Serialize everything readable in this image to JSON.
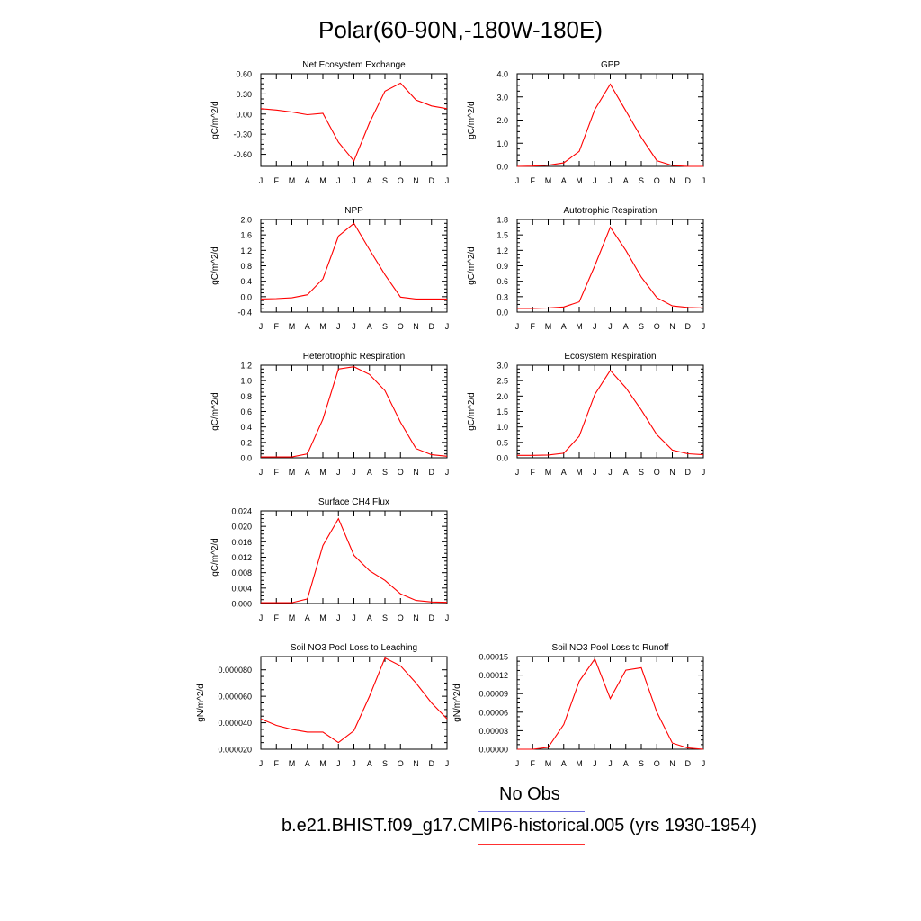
{
  "figure": {
    "title": "Polar(60-90N,-180W-180E)"
  },
  "legend": [
    {
      "label": "No Obs",
      "color": "#7070e0"
    },
    {
      "label": "b.e21.BHIST.f09_g17.CMIP6-historical.005 (yrs 1930-1954)",
      "color": "#ff3030"
    }
  ],
  "line_color": "#ff0000",
  "chart_data": [
    {
      "type": "line",
      "title": "Net Ecosystem Exchange",
      "ylabel": "gC/m^2/d",
      "categories": [
        "J",
        "F",
        "M",
        "A",
        "M",
        "J",
        "J",
        "A",
        "S",
        "O",
        "N",
        "D",
        "J"
      ],
      "ylim": [
        -0.78,
        0.6
      ],
      "yticks": [
        "0.60",
        "0.30",
        "0.00",
        "-0.30",
        "-0.60"
      ],
      "ytick_values": [
        0.6,
        0.3,
        0.0,
        -0.3,
        -0.6
      ],
      "series": [
        {
          "values": [
            0.08,
            0.06,
            0.03,
            -0.01,
            0.01,
            -0.42,
            -0.7,
            -0.13,
            0.34,
            0.46,
            0.21,
            0.12,
            0.08
          ]
        }
      ]
    },
    {
      "type": "line",
      "title": "GPP",
      "ylabel": "gC/m^2/d",
      "categories": [
        "J",
        "F",
        "M",
        "A",
        "M",
        "J",
        "J",
        "A",
        "S",
        "O",
        "N",
        "D",
        "J"
      ],
      "ylim": [
        0.0,
        4.0
      ],
      "yticks": [
        "4.0",
        "3.0",
        "2.0",
        "1.0",
        "0.0"
      ],
      "ytick_values": [
        4.0,
        3.0,
        2.0,
        1.0,
        0.0
      ],
      "series": [
        {
          "values": [
            0.0,
            0.01,
            0.05,
            0.15,
            0.65,
            2.45,
            3.55,
            2.4,
            1.25,
            0.25,
            0.04,
            0.0,
            0.0
          ]
        }
      ]
    },
    {
      "type": "line",
      "title": "NPP",
      "ylabel": "gC/m^2/d",
      "categories": [
        "J",
        "F",
        "M",
        "A",
        "M",
        "J",
        "J",
        "A",
        "S",
        "O",
        "N",
        "D",
        "J"
      ],
      "ylim": [
        -0.4,
        2.0
      ],
      "yticks": [
        "2.0",
        "1.6",
        "1.2",
        "0.8",
        "0.4",
        "0.0",
        "-0.4"
      ],
      "ytick_values": [
        2.0,
        1.6,
        1.2,
        0.8,
        0.4,
        0.0,
        -0.4
      ],
      "series": [
        {
          "values": [
            -0.06,
            -0.05,
            -0.03,
            0.05,
            0.46,
            1.57,
            1.9,
            1.22,
            0.57,
            -0.01,
            -0.06,
            -0.06,
            -0.06
          ]
        }
      ]
    },
    {
      "type": "line",
      "title": "Autotrophic Respiration",
      "ylabel": "gC/m^2/d",
      "categories": [
        "J",
        "F",
        "M",
        "A",
        "M",
        "J",
        "J",
        "A",
        "S",
        "O",
        "N",
        "D",
        "J"
      ],
      "ylim": [
        0.0,
        1.8
      ],
      "yticks": [
        "1.8",
        "1.5",
        "1.2",
        "0.9",
        "0.6",
        "0.3",
        "0.0"
      ],
      "ytick_values": [
        1.8,
        1.5,
        1.2,
        0.9,
        0.6,
        0.3,
        0.0
      ],
      "series": [
        {
          "values": [
            0.07,
            0.07,
            0.08,
            0.1,
            0.2,
            0.9,
            1.65,
            1.2,
            0.68,
            0.28,
            0.12,
            0.09,
            0.08
          ]
        }
      ]
    },
    {
      "type": "line",
      "title": "Heterotrophic Respiration",
      "ylabel": "gC/m^2/d",
      "categories": [
        "J",
        "F",
        "M",
        "A",
        "M",
        "J",
        "J",
        "A",
        "S",
        "O",
        "N",
        "D",
        "J"
      ],
      "ylim": [
        0.0,
        1.2
      ],
      "yticks": [
        "1.2",
        "1.0",
        "0.8",
        "0.6",
        "0.4",
        "0.2",
        "0.0"
      ],
      "ytick_values": [
        1.2,
        1.0,
        0.8,
        0.6,
        0.4,
        0.2,
        0.0
      ],
      "series": [
        {
          "values": [
            0.01,
            0.01,
            0.01,
            0.05,
            0.5,
            1.15,
            1.18,
            1.08,
            0.87,
            0.46,
            0.12,
            0.04,
            0.02
          ]
        }
      ]
    },
    {
      "type": "line",
      "title": "Ecosystem Respiration",
      "ylabel": "gC/m^2/d",
      "categories": [
        "J",
        "F",
        "M",
        "A",
        "M",
        "J",
        "J",
        "A",
        "S",
        "O",
        "N",
        "D",
        "J"
      ],
      "ylim": [
        0.0,
        3.0
      ],
      "yticks": [
        "3.0",
        "2.5",
        "2.0",
        "1.5",
        "1.0",
        "0.5",
        "0.0"
      ],
      "ytick_values": [
        3.0,
        2.5,
        2.0,
        1.5,
        1.0,
        0.5,
        0.0
      ],
      "series": [
        {
          "values": [
            0.08,
            0.08,
            0.09,
            0.15,
            0.7,
            2.05,
            2.83,
            2.27,
            1.55,
            0.75,
            0.25,
            0.13,
            0.1
          ]
        }
      ]
    },
    {
      "type": "line",
      "title": "Surface CH4 Flux",
      "ylabel": "gC/m^2/d",
      "categories": [
        "J",
        "F",
        "M",
        "A",
        "M",
        "J",
        "J",
        "A",
        "S",
        "O",
        "N",
        "D",
        "J"
      ],
      "ylim": [
        0.0,
        0.024
      ],
      "yticks": [
        "0.024",
        "0.020",
        "0.016",
        "0.012",
        "0.008",
        "0.004",
        "0.000"
      ],
      "ytick_values": [
        0.024,
        0.02,
        0.016,
        0.012,
        0.008,
        0.004,
        0.0
      ],
      "series": [
        {
          "values": [
            0.0002,
            0.0002,
            0.0002,
            0.0012,
            0.015,
            0.022,
            0.0125,
            0.0085,
            0.006,
            0.0025,
            0.0008,
            0.0004,
            0.0003
          ]
        }
      ]
    },
    {
      "type": "line",
      "title": "Soil NO3 Pool Loss to Leaching",
      "ylabel": "gN/m^2/d",
      "categories": [
        "J",
        "F",
        "M",
        "A",
        "M",
        "J",
        "J",
        "A",
        "S",
        "O",
        "N",
        "D",
        "J"
      ],
      "ylim": [
        2e-05,
        9e-05
      ],
      "yticks": [
        "0.000080",
        "0.000060",
        "0.000040",
        "0.000020"
      ],
      "ytick_values": [
        8e-05,
        6e-05,
        4e-05,
        2e-05
      ],
      "series": [
        {
          "values": [
            4.3e-05,
            3.8e-05,
            3.5e-05,
            3.3e-05,
            3.3e-05,
            2.5e-05,
            3.4e-05,
            6e-05,
            8.9e-05,
            8.3e-05,
            7e-05,
            5.5e-05,
            4.3e-05
          ]
        }
      ]
    },
    {
      "type": "line",
      "title": "Soil NO3 Pool Loss to Runoff",
      "ylabel": "gN/m^2/d",
      "categories": [
        "J",
        "F",
        "M",
        "A",
        "M",
        "J",
        "J",
        "A",
        "S",
        "O",
        "N",
        "D",
        "J"
      ],
      "ylim": [
        0.0,
        0.00015
      ],
      "yticks": [
        "0.00015",
        "0.00012",
        "0.00009",
        "0.00006",
        "0.00003",
        "0.00000"
      ],
      "ytick_values": [
        0.00015,
        0.00012,
        9e-05,
        6e-05,
        3e-05,
        0.0
      ],
      "series": [
        {
          "values": [
            0.0,
            0.0,
            3e-06,
            4e-05,
            0.00011,
            0.000146,
            8.2e-05,
            0.000128,
            0.000132,
            6e-05,
            1e-05,
            2e-06,
            0.0
          ]
        }
      ]
    }
  ]
}
